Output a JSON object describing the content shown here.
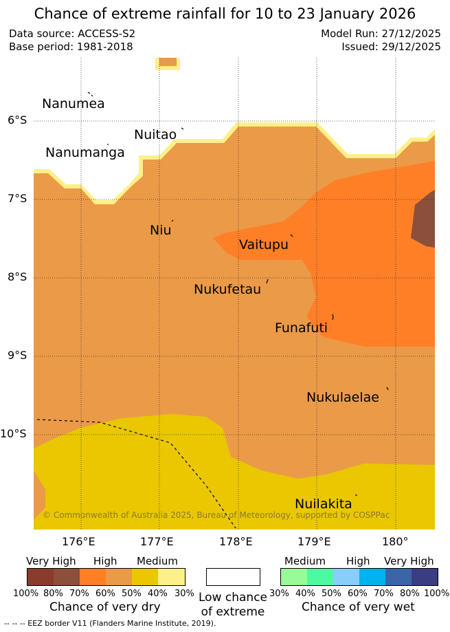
{
  "title": "Chance of extreme rainfall for 10 to 23 January 2026",
  "data_source": "Data source: ACCESS-S2",
  "base_period": "Base period: 1981-2018",
  "model_run": "Model Run: 27/12/2025",
  "issued": "Issued: 29/12/2025",
  "copyright": "© Commonwealth of Australia 2025, Bureau of Meteorology, supported by COSPPac",
  "islands": [
    "Nanumea",
    "Nuitao",
    "Nanumanga",
    "Niu",
    "Vaitupu",
    "Nukufetau",
    "Funafuti",
    "Nukulaelae",
    "Nuilakita"
  ],
  "lat_ticks": [
    "6°S",
    "7°S",
    "8°S",
    "9°S",
    "10°S"
  ],
  "lon_ticks": [
    "176°E",
    "177°E",
    "178°E",
    "179°E",
    "180°"
  ],
  "legend": {
    "dry": {
      "levels": [
        "Very High",
        "High",
        "Medium"
      ],
      "pcts": [
        "100%",
        "80%",
        "70%",
        "60%",
        "50%",
        "40%",
        "30%"
      ],
      "colors": [
        "#8b3a2e",
        "#8b4f3c",
        "#ff7f27",
        "#eb9a48",
        "#eac700",
        "#fef088"
      ],
      "title": "Chance of very dry"
    },
    "neutral": {
      "title_line1": "Low chance",
      "title_line2": "of extreme",
      "color": "#ffffff"
    },
    "wet": {
      "levels": [
        "Medium",
        "High",
        "Very High"
      ],
      "pcts": [
        "30%",
        "40%",
        "50%",
        "60%",
        "70%",
        "80%",
        "100%"
      ],
      "colors": [
        "#98fb98",
        "#4dfaa0",
        "#87cefa",
        "#00b2ee",
        "#3a66a8",
        "#3a3d80"
      ],
      "title": "Chance of very wet"
    }
  },
  "eez_note": "--  --  -- EEZ border V11 (Flanders Marine Institute, 2019).",
  "colors": {
    "white_no_data": "#ffffff",
    "yellow_edge": "#fef088",
    "medium_dry": "#eac700",
    "high_dry_50_60": "#eb9a48",
    "high_dry_60_70": "#ff7f27",
    "very_high_dry": "#8b4f3c"
  }
}
